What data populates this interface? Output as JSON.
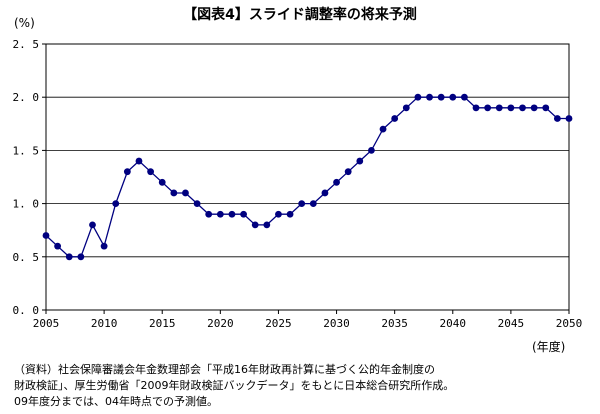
{
  "title": "【図表4】スライド調整率の将来予測",
  "y_unit": "(%)",
  "x_unit": "(年度)",
  "notes": [
    "（資料）社会保障審議会年金数理部会「平成16年財政再計算に基づく公的年金制度の",
    "財政検証」、厚生労働省「2009年財政検証バックデータ」をもとに日本総合研究所作成。",
    "09年度分までは、04年時点での予測値。"
  ],
  "chart_data": {
    "type": "line",
    "title": "【図表4】スライド調整率の将来予測",
    "ylabel": "(%)",
    "xlabel": "(年度)",
    "xlim": [
      2005,
      2050
    ],
    "ylim": [
      0.0,
      2.5
    ],
    "grid": "horizontal",
    "legend": "none",
    "color": "#000080",
    "x_ticks": [
      2005,
      2010,
      2015,
      2020,
      2025,
      2030,
      2035,
      2040,
      2045,
      2050
    ],
    "y_ticks": [
      "0.0",
      "0.5",
      "1.0",
      "1.5",
      "2.0",
      "2.5"
    ],
    "series": [
      {
        "x": [
          2005,
          2006,
          2007,
          2008,
          2009,
          2010,
          2011,
          2012,
          2013,
          2014,
          2015,
          2016,
          2017,
          2018,
          2019,
          2020,
          2021,
          2022,
          2023,
          2024,
          2025,
          2026,
          2027,
          2028,
          2029,
          2030,
          2031,
          2032,
          2033,
          2034,
          2035,
          2036,
          2037,
          2038,
          2039,
          2040,
          2041,
          2042,
          2043,
          2044,
          2045,
          2046,
          2047,
          2048,
          2049,
          2050
        ],
        "values": [
          0.7,
          0.6,
          0.5,
          0.5,
          0.8,
          0.6,
          1.0,
          1.3,
          1.4,
          1.3,
          1.2,
          1.1,
          1.1,
          1.0,
          0.9,
          0.9,
          0.9,
          0.9,
          0.8,
          0.8,
          0.9,
          0.9,
          1.0,
          1.0,
          1.1,
          1.2,
          1.3,
          1.4,
          1.5,
          1.7,
          1.8,
          1.9,
          2.0,
          2.0,
          2.0,
          2.0,
          2.0,
          1.9,
          1.9,
          1.9,
          1.9,
          1.9,
          1.9,
          1.9,
          1.8,
          1.8
        ]
      }
    ]
  }
}
